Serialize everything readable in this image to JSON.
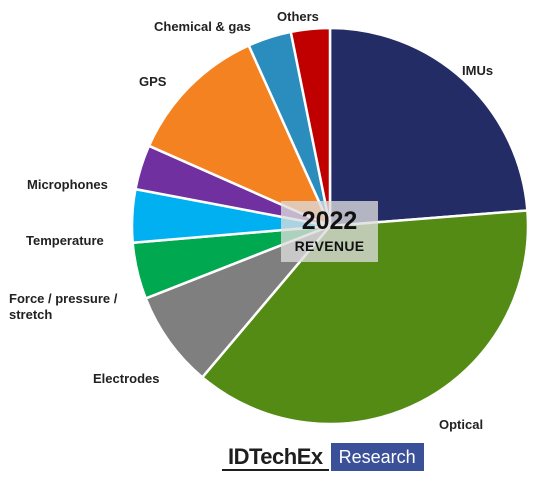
{
  "chart_data": {
    "type": "pie",
    "title": "2022",
    "subtitle": "REVENUE",
    "slices": [
      {
        "label": "IMUs",
        "value": 24.7,
        "color": "#232c64"
      },
      {
        "label": "Optical",
        "value": 38.9,
        "color": "#548b14"
      },
      {
        "label": "Electrodes",
        "value": 8.2,
        "color": "#7f7f7f"
      },
      {
        "label": "Force / pressure / stretch",
        "value": 4.8,
        "color": "#00a84f"
      },
      {
        "label": "Temperature",
        "value": 4.5,
        "color": "#00b0f0"
      },
      {
        "label": "Microphones",
        "value": 3.8,
        "color": "#7030a0"
      },
      {
        "label": "GPS",
        "value": 12.1,
        "color": "#f58220"
      },
      {
        "label": "Chemical & gas",
        "value": 3.7,
        "color": "#2b8cbe"
      },
      {
        "label": "Others",
        "value": 3.3,
        "color": "#c00000"
      }
    ]
  },
  "labels": {
    "imus": "IMUs",
    "optical": "Optical",
    "electrodes": "Electrodes",
    "force_line1": "Force / pressure /",
    "force_line2": "stretch",
    "temperature": "Temperature",
    "microphones": "Microphones",
    "gps": "GPS",
    "chemical": "Chemical & gas",
    "others": "Others"
  },
  "center": {
    "year": "2022",
    "caption": "REVENUE"
  },
  "brand": {
    "name": "IDTechEx",
    "tag": "Research"
  }
}
